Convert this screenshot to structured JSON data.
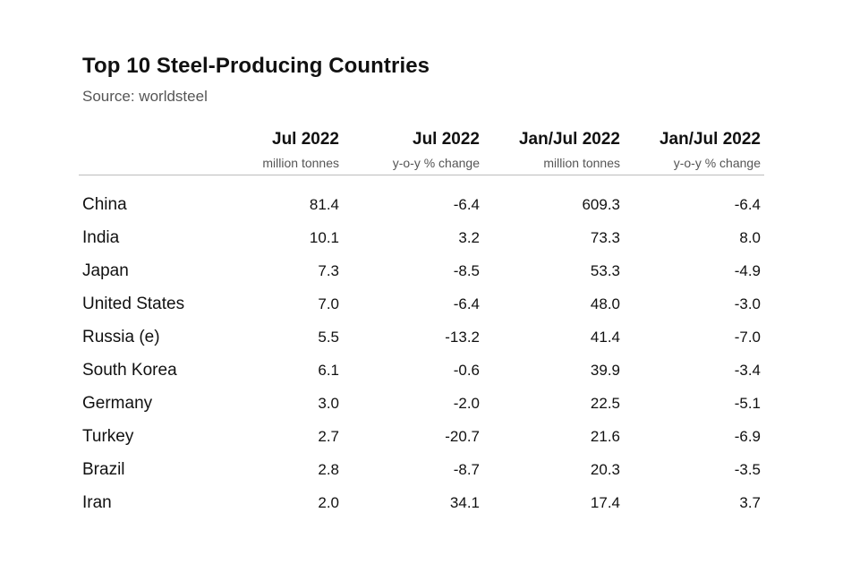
{
  "title": "Top 10 Steel-Producing Countries",
  "subtitle": "Source: worldsteel",
  "chart_data": {
    "type": "table",
    "title": "Top 10 Steel-Producing Countries",
    "subtitle": "Source: worldsteel",
    "columns": [
      {
        "header": "Jul 2022",
        "unit": "million tonnes"
      },
      {
        "header": "Jul 2022",
        "unit": "y-o-y % change"
      },
      {
        "header": "Jan/Jul 2022",
        "unit": "million tonnes"
      },
      {
        "header": "Jan/Jul 2022",
        "unit": "y-o-y % change"
      }
    ],
    "rows": [
      {
        "country": "China",
        "values": [
          "81.4",
          "-6.4",
          "609.3",
          "-6.4"
        ]
      },
      {
        "country": "India",
        "values": [
          "10.1",
          "3.2",
          "73.3",
          "8.0"
        ]
      },
      {
        "country": "Japan",
        "values": [
          "7.3",
          "-8.5",
          "53.3",
          "-4.9"
        ]
      },
      {
        "country": "United States",
        "values": [
          "7.0",
          "-6.4",
          "48.0",
          "-3.0"
        ]
      },
      {
        "country": "Russia (e)",
        "values": [
          "5.5",
          "-13.2",
          "41.4",
          "-7.0"
        ]
      },
      {
        "country": "South Korea",
        "values": [
          "6.1",
          "-0.6",
          "39.9",
          "-3.4"
        ]
      },
      {
        "country": "Germany",
        "values": [
          "3.0",
          "-2.0",
          "22.5",
          "-5.1"
        ]
      },
      {
        "country": "Turkey",
        "values": [
          "2.7",
          "-20.7",
          "21.6",
          "-6.9"
        ]
      },
      {
        "country": "Brazil",
        "values": [
          "2.8",
          "-8.7",
          "20.3",
          "-3.5"
        ]
      },
      {
        "country": "Iran",
        "values": [
          "2.0",
          "34.1",
          "17.4",
          "3.7"
        ]
      }
    ]
  }
}
